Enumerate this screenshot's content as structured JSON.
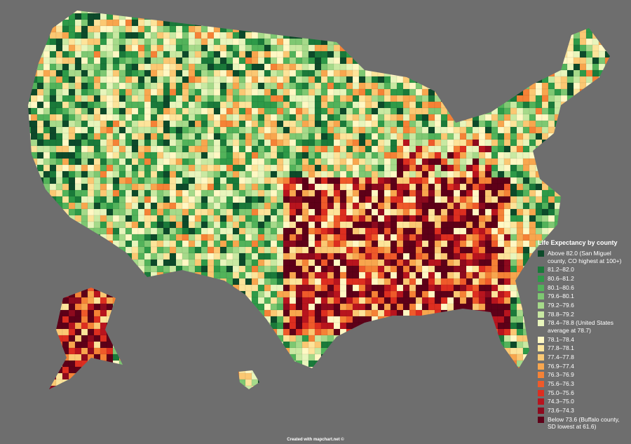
{
  "legend": {
    "title": "Life Expectancy by county",
    "items": [
      {
        "label": "Above 82.0 (San Miguel county, CO highest at 100+)",
        "color": "#0d4a2a"
      },
      {
        "label": "81.2–82.0",
        "color": "#1a7a3a"
      },
      {
        "label": "80.6–81.2",
        "color": "#2e9a48"
      },
      {
        "label": "80.1–80.6",
        "color": "#52b35a"
      },
      {
        "label": "79.6–80.1",
        "color": "#7ec872"
      },
      {
        "label": "79.2–79.6",
        "color": "#a6da8a"
      },
      {
        "label": "78.8–79.2",
        "color": "#c9e9a2"
      },
      {
        "label": "78.4–78.8 (United States average at 78.7)",
        "color": "#e8f5bc"
      },
      {
        "label": "78.1–78.4",
        "color": "#fff8c4"
      },
      {
        "label": "77.8–78.1",
        "color": "#fde49a"
      },
      {
        "label": "77.4–77.8",
        "color": "#fbc873"
      },
      {
        "label": "76.9–77.4",
        "color": "#f8a64e"
      },
      {
        "label": "76.3–76.9",
        "color": "#f58236"
      },
      {
        "label": "75.6–76.3",
        "color": "#ef5a2a"
      },
      {
        "label": "75.0–75.6",
        "color": "#dd2e20"
      },
      {
        "label": "74.3–75.0",
        "color": "#b8141e"
      },
      {
        "label": "73.6–74.3",
        "color": "#8e0a1e"
      },
      {
        "label": "Below 73.6 (Buffalo county, SD lowest at 61.6)",
        "color": "#5e0018"
      }
    ]
  },
  "footer": "Created with mapchart.net ©"
}
